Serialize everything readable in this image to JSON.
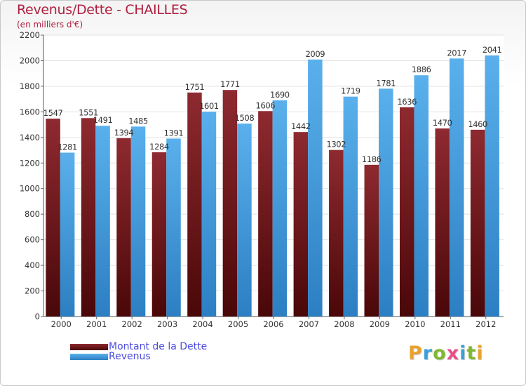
{
  "title": "Revenus/Dette - CHAILLES",
  "subtitle": "(en milliers d'€)",
  "logo": {
    "text": "Proxiti",
    "letter_colors": [
      "#e8a230",
      "#3aa0d8",
      "#7fb832",
      "#e94f8a",
      "#3aa0d8",
      "#7fb832",
      "#e8a230"
    ]
  },
  "chart_data": {
    "type": "bar",
    "categories": [
      "2000",
      "2001",
      "2002",
      "2003",
      "2004",
      "2005",
      "2006",
      "2007",
      "2008",
      "2009",
      "2010",
      "2011",
      "2012"
    ],
    "series": [
      {
        "name": "Montant de la Dette",
        "color": "#7a1a24",
        "values": [
          1547,
          1551,
          1394,
          1284,
          1751,
          1771,
          1606,
          1442,
          1302,
          1186,
          1636,
          1470,
          1460
        ]
      },
      {
        "name": "Revenus",
        "color": "#4da3e3",
        "values": [
          1281,
          1491,
          1485,
          1391,
          1601,
          1508,
          1690,
          2009,
          1719,
          1781,
          1886,
          2017,
          2041
        ]
      }
    ],
    "ylim": [
      0,
      2200
    ],
    "yticks": [
      0,
      200,
      400,
      600,
      800,
      1000,
      1200,
      1400,
      1600,
      1800,
      2000,
      2200
    ],
    "grid": true,
    "legend_position": "bottom-left"
  }
}
